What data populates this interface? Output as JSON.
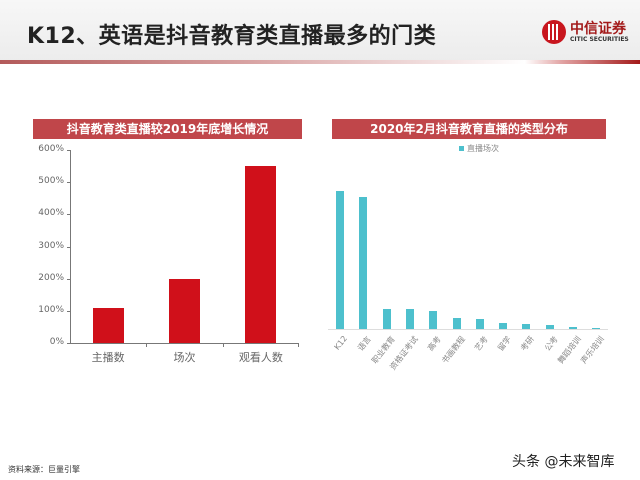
{
  "header": {
    "title": "K12、英语是抖音教育类直播最多的门类",
    "logo_cn": "中信证券",
    "logo_en": "CITIC SECURITIES"
  },
  "colors": {
    "panel_header": "#c0464a",
    "left_bar": "#d0101a",
    "right_bar": "#4dc0cd"
  },
  "chart_data": [
    {
      "type": "bar",
      "title": "抖音教育类直播较2019年底增长情况",
      "categories": [
        "主播数",
        "场次",
        "观看人数"
      ],
      "values": [
        110,
        200,
        550
      ],
      "unit": "%",
      "yticks": [
        "600%",
        "500%",
        "400%",
        "300%",
        "200%",
        "100%",
        "0%"
      ],
      "ylim": [
        0,
        600
      ],
      "xlabel": "",
      "ylabel": "",
      "grid": false,
      "legend": false
    },
    {
      "type": "bar",
      "title": "2020年2月抖音教育直播的类型分布",
      "legend": [
        "直播场次"
      ],
      "legend_position": "top",
      "categories": [
        "K12",
        "语言",
        "职业教育",
        "资格证考试",
        "高考",
        "书画教程",
        "艺考",
        "留学",
        "考研",
        "公考",
        "舞蹈培训",
        "声乐培训"
      ],
      "series": [
        {
          "name": "直播场次",
          "values": [
            138,
            132,
            20,
            20,
            18,
            11,
            10,
            6,
            5,
            4,
            2,
            1
          ]
        }
      ],
      "value_note": "relative bar heights; no y-axis shown",
      "grid": false
    }
  ],
  "footer": {
    "source": "资料来源：巨量引擎",
    "watermark": "头条 @未来智库"
  }
}
